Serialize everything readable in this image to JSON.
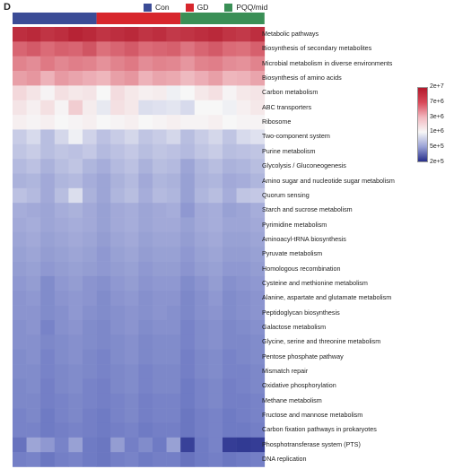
{
  "panel_label": "D",
  "groups": [
    {
      "name": "Con",
      "color": "#3b4c96",
      "n": 6
    },
    {
      "name": "GD",
      "color": "#d7262c",
      "n": 6
    },
    {
      "name": "PQQ/mid",
      "color": "#3a8f56",
      "n": 6
    }
  ],
  "scale": {
    "labels": [
      "2e+7",
      "7e+6",
      "3e+6",
      "1e+6",
      "5e+5",
      "2e+5"
    ],
    "colors": [
      "#b2182b",
      "#d94a5a",
      "#f2b7bf",
      "#f7f7f7",
      "#9aa2d6",
      "#262e8a"
    ]
  },
  "chart_data": {
    "type": "heatmap",
    "columns": 18,
    "rows": [
      "Metabolic pathways",
      "Biosynthesis of secondary metabolites",
      "Microbial metabolism in diverse environments",
      "Biosynthesis of amino acids",
      "Carbon metabolism",
      "ABC transporters",
      "Ribosome",
      "Two-component system",
      "Purine metabolism",
      "Glycolysis / Gluconeogenesis",
      "Amino sugar and nucleotide sugar metabolism",
      "Quorum sensing",
      "Starch and sucrose metabolism",
      "Pyrimidine metabolism",
      "Aminoacyl-tRNA biosynthesis",
      "Pyruvate metabolism",
      "Homologous recombination",
      "Cysteine and methionine metabolism",
      "Alanine, aspartate and glutamate metabolism",
      "Peptidoglycan biosynthesis",
      "Galactose metabolism",
      "Glycine, serine and threonine metabolism",
      "Pentose phosphate pathway",
      "Mismatch repair",
      "Oxidative phosphorylation",
      "Methane metabolism",
      "Fructose and mannose metabolism",
      "Carbon fixation pathways in prokaryotes",
      "Phosphotransferase system (PTS)",
      "DNA replication"
    ],
    "values": [
      [
        0.96,
        0.97,
        0.95,
        0.96,
        0.98,
        0.97,
        0.95,
        0.96,
        0.97,
        0.95,
        0.96,
        0.94,
        0.95,
        0.96,
        0.97,
        0.95,
        0.94,
        0.96
      ],
      [
        0.86,
        0.88,
        0.85,
        0.87,
        0.86,
        0.89,
        0.84,
        0.86,
        0.88,
        0.85,
        0.86,
        0.87,
        0.83,
        0.86,
        0.88,
        0.85,
        0.84,
        0.87
      ],
      [
        0.8,
        0.78,
        0.82,
        0.79,
        0.81,
        0.8,
        0.77,
        0.8,
        0.82,
        0.78,
        0.8,
        0.79,
        0.76,
        0.8,
        0.81,
        0.78,
        0.77,
        0.8
      ],
      [
        0.74,
        0.76,
        0.7,
        0.75,
        0.73,
        0.71,
        0.69,
        0.74,
        0.76,
        0.7,
        0.73,
        0.72,
        0.68,
        0.71,
        0.74,
        0.69,
        0.7,
        0.73
      ],
      [
        0.6,
        0.57,
        0.53,
        0.58,
        0.56,
        0.57,
        0.52,
        0.59,
        0.56,
        0.54,
        0.55,
        0.5,
        0.52,
        0.56,
        0.58,
        0.53,
        0.56,
        0.57
      ],
      [
        0.57,
        0.54,
        0.58,
        0.53,
        0.63,
        0.55,
        0.48,
        0.58,
        0.56,
        0.45,
        0.46,
        0.47,
        0.44,
        0.52,
        0.52,
        0.5,
        0.54,
        0.56
      ],
      [
        0.54,
        0.53,
        0.54,
        0.52,
        0.53,
        0.54,
        0.52,
        0.53,
        0.54,
        0.52,
        0.53,
        0.54,
        0.53,
        0.53,
        0.54,
        0.52,
        0.53,
        0.53
      ],
      [
        0.4,
        0.44,
        0.36,
        0.43,
        0.5,
        0.42,
        0.37,
        0.4,
        0.43,
        0.38,
        0.4,
        0.43,
        0.36,
        0.4,
        0.43,
        0.38,
        0.44,
        0.46
      ],
      [
        0.38,
        0.4,
        0.36,
        0.38,
        0.37,
        0.39,
        0.35,
        0.37,
        0.39,
        0.36,
        0.38,
        0.37,
        0.35,
        0.38,
        0.4,
        0.36,
        0.37,
        0.38
      ],
      [
        0.35,
        0.37,
        0.33,
        0.36,
        0.38,
        0.34,
        0.32,
        0.35,
        0.37,
        0.33,
        0.36,
        0.35,
        0.3,
        0.34,
        0.36,
        0.33,
        0.34,
        0.36
      ],
      [
        0.33,
        0.34,
        0.31,
        0.34,
        0.35,
        0.32,
        0.3,
        0.33,
        0.35,
        0.31,
        0.34,
        0.33,
        0.29,
        0.33,
        0.34,
        0.31,
        0.32,
        0.34
      ],
      [
        0.37,
        0.35,
        0.31,
        0.36,
        0.45,
        0.33,
        0.3,
        0.34,
        0.36,
        0.32,
        0.35,
        0.34,
        0.29,
        0.34,
        0.36,
        0.32,
        0.38,
        0.39
      ],
      [
        0.32,
        0.31,
        0.3,
        0.32,
        0.33,
        0.31,
        0.29,
        0.31,
        0.32,
        0.3,
        0.31,
        0.32,
        0.27,
        0.31,
        0.32,
        0.29,
        0.3,
        0.32
      ],
      [
        0.31,
        0.32,
        0.3,
        0.31,
        0.32,
        0.31,
        0.29,
        0.31,
        0.32,
        0.3,
        0.31,
        0.31,
        0.29,
        0.31,
        0.32,
        0.3,
        0.3,
        0.31
      ],
      [
        0.3,
        0.31,
        0.29,
        0.3,
        0.31,
        0.3,
        0.28,
        0.3,
        0.31,
        0.29,
        0.3,
        0.3,
        0.28,
        0.3,
        0.31,
        0.29,
        0.29,
        0.3
      ],
      [
        0.29,
        0.3,
        0.28,
        0.29,
        0.3,
        0.29,
        0.27,
        0.29,
        0.3,
        0.28,
        0.29,
        0.29,
        0.27,
        0.29,
        0.3,
        0.28,
        0.28,
        0.29
      ],
      [
        0.28,
        0.29,
        0.27,
        0.28,
        0.29,
        0.28,
        0.27,
        0.28,
        0.29,
        0.27,
        0.28,
        0.28,
        0.26,
        0.28,
        0.29,
        0.27,
        0.27,
        0.28
      ],
      [
        0.27,
        0.28,
        0.24,
        0.27,
        0.28,
        0.26,
        0.25,
        0.27,
        0.28,
        0.26,
        0.27,
        0.27,
        0.24,
        0.26,
        0.28,
        0.25,
        0.26,
        0.27
      ],
      [
        0.26,
        0.27,
        0.24,
        0.26,
        0.27,
        0.26,
        0.24,
        0.26,
        0.27,
        0.25,
        0.26,
        0.26,
        0.23,
        0.25,
        0.27,
        0.24,
        0.25,
        0.26
      ],
      [
        0.26,
        0.26,
        0.24,
        0.25,
        0.27,
        0.25,
        0.24,
        0.25,
        0.26,
        0.25,
        0.26,
        0.25,
        0.23,
        0.25,
        0.26,
        0.24,
        0.25,
        0.26
      ],
      [
        0.25,
        0.26,
        0.22,
        0.25,
        0.26,
        0.24,
        0.23,
        0.25,
        0.26,
        0.24,
        0.25,
        0.25,
        0.22,
        0.24,
        0.25,
        0.23,
        0.24,
        0.25
      ],
      [
        0.25,
        0.25,
        0.23,
        0.24,
        0.25,
        0.24,
        0.23,
        0.24,
        0.25,
        0.23,
        0.24,
        0.24,
        0.22,
        0.24,
        0.25,
        0.23,
        0.23,
        0.24
      ],
      [
        0.24,
        0.25,
        0.22,
        0.24,
        0.25,
        0.23,
        0.22,
        0.24,
        0.25,
        0.23,
        0.24,
        0.24,
        0.21,
        0.23,
        0.24,
        0.22,
        0.23,
        0.24
      ],
      [
        0.24,
        0.24,
        0.22,
        0.23,
        0.24,
        0.23,
        0.22,
        0.23,
        0.24,
        0.22,
        0.23,
        0.23,
        0.21,
        0.23,
        0.24,
        0.22,
        0.22,
        0.23
      ],
      [
        0.23,
        0.24,
        0.21,
        0.23,
        0.24,
        0.22,
        0.21,
        0.23,
        0.24,
        0.22,
        0.23,
        0.23,
        0.2,
        0.22,
        0.23,
        0.21,
        0.22,
        0.23
      ],
      [
        0.23,
        0.23,
        0.21,
        0.22,
        0.23,
        0.22,
        0.21,
        0.22,
        0.23,
        0.21,
        0.22,
        0.22,
        0.2,
        0.22,
        0.23,
        0.21,
        0.21,
        0.22
      ],
      [
        0.22,
        0.23,
        0.2,
        0.22,
        0.23,
        0.21,
        0.2,
        0.22,
        0.23,
        0.21,
        0.22,
        0.22,
        0.19,
        0.21,
        0.22,
        0.2,
        0.21,
        0.22
      ],
      [
        0.22,
        0.22,
        0.2,
        0.21,
        0.22,
        0.21,
        0.2,
        0.21,
        0.22,
        0.2,
        0.21,
        0.21,
        0.19,
        0.21,
        0.22,
        0.2,
        0.2,
        0.21
      ],
      [
        0.18,
        0.3,
        0.27,
        0.22,
        0.29,
        0.2,
        0.19,
        0.28,
        0.21,
        0.24,
        0.2,
        0.29,
        0.05,
        0.2,
        0.22,
        0.04,
        0.03,
        0.04
      ],
      [
        0.21,
        0.22,
        0.19,
        0.21,
        0.22,
        0.2,
        0.19,
        0.21,
        0.22,
        0.2,
        0.21,
        0.21,
        0.18,
        0.2,
        0.21,
        0.19,
        0.2,
        0.21
      ]
    ]
  }
}
